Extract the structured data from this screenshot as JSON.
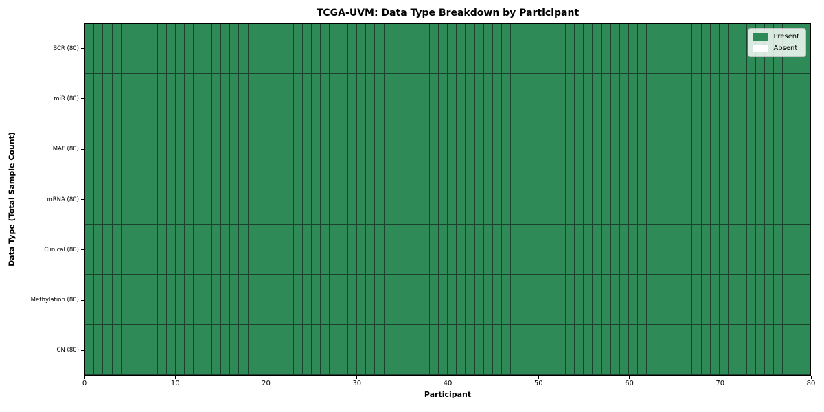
{
  "figure": {
    "background": "#ffffff"
  },
  "chart_data": {
    "type": "heatmap",
    "title": "TCGA-UVM: Data Type Breakdown by Participant",
    "xlabel": "Participant",
    "ylabel": "Data Type (Total Sample Count)",
    "x_range": [
      0,
      80
    ],
    "x_ticks": [
      0,
      10,
      20,
      30,
      40,
      50,
      60,
      70,
      80
    ],
    "n_participants": 80,
    "rows": [
      {
        "label": "BCR (80)",
        "total_samples": 80,
        "present_count": 80
      },
      {
        "label": "miR (80)",
        "total_samples": 80,
        "present_count": 80
      },
      {
        "label": "MAF (80)",
        "total_samples": 80,
        "present_count": 80
      },
      {
        "label": "mRNA (80)",
        "total_samples": 80,
        "present_count": 80
      },
      {
        "label": "Clinical (80)",
        "total_samples": 80,
        "present_count": 80
      },
      {
        "label": "Methylation (80)",
        "total_samples": 80,
        "present_count": 80
      },
      {
        "label": "CN (80)",
        "total_samples": 80,
        "present_count": 80
      }
    ],
    "legend": {
      "position": "top-right",
      "items": [
        {
          "label": "Present",
          "color": "#2e8b57"
        },
        {
          "label": "Absent",
          "color": "#ffffff"
        }
      ]
    },
    "colors": {
      "present": "#2e8b57",
      "absent": "#ffffff",
      "cell_edge": "#1c422e",
      "frame": "#000000",
      "tick": "#000000"
    },
    "grid": "per-cell borders, axes frame on"
  }
}
